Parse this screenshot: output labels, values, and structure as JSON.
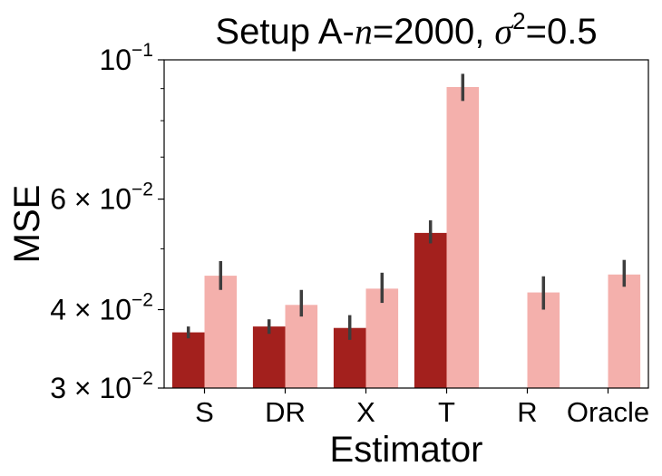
{
  "chart_data": {
    "type": "bar",
    "title": {
      "prefix": "Setup A-",
      "n_symbol": "n",
      "n_value": "=2000, ",
      "sigma_symbol": "σ",
      "sigma_exp": "2",
      "sigma_value": "=0.5"
    },
    "xlabel": "Estimator",
    "ylabel": "MSE",
    "yscale": "log",
    "ylim": [
      0.03,
      0.1
    ],
    "categories": [
      "S",
      "DR",
      "X",
      "T",
      "R",
      "Oracle"
    ],
    "series": [
      {
        "color": "#a3201d",
        "values": [
          0.0368,
          0.0376,
          0.0374,
          0.053,
          null,
          null
        ],
        "err_low": [
          0.036,
          0.0366,
          0.0358,
          0.051,
          null,
          null
        ],
        "err_high": [
          0.0376,
          0.0386,
          0.0392,
          0.0555,
          null,
          null
        ]
      },
      {
        "color": "#f4b0ac",
        "values": [
          0.0453,
          0.0407,
          0.0432,
          0.0905,
          0.0426,
          0.0455
        ],
        "err_low": [
          0.043,
          0.039,
          0.041,
          0.086,
          0.04,
          0.0435
        ],
        "err_high": [
          0.0478,
          0.043,
          0.0458,
          0.095,
          0.0452,
          0.048
        ]
      }
    ],
    "yticks": [
      {
        "value": 0.1,
        "mantissa": "",
        "base": "10",
        "exp": "−1"
      },
      {
        "value": 0.06,
        "mantissa": "6 × ",
        "base": "10",
        "exp": "−2"
      },
      {
        "value": 0.04,
        "mantissa": "4 × ",
        "base": "10",
        "exp": "−2"
      },
      {
        "value": 0.03,
        "mantissa": "3 × ",
        "base": "10",
        "exp": "−2"
      }
    ],
    "minor_yticks": [
      0.05,
      0.07,
      0.08,
      0.09
    ],
    "grid": false,
    "legend": "none"
  }
}
